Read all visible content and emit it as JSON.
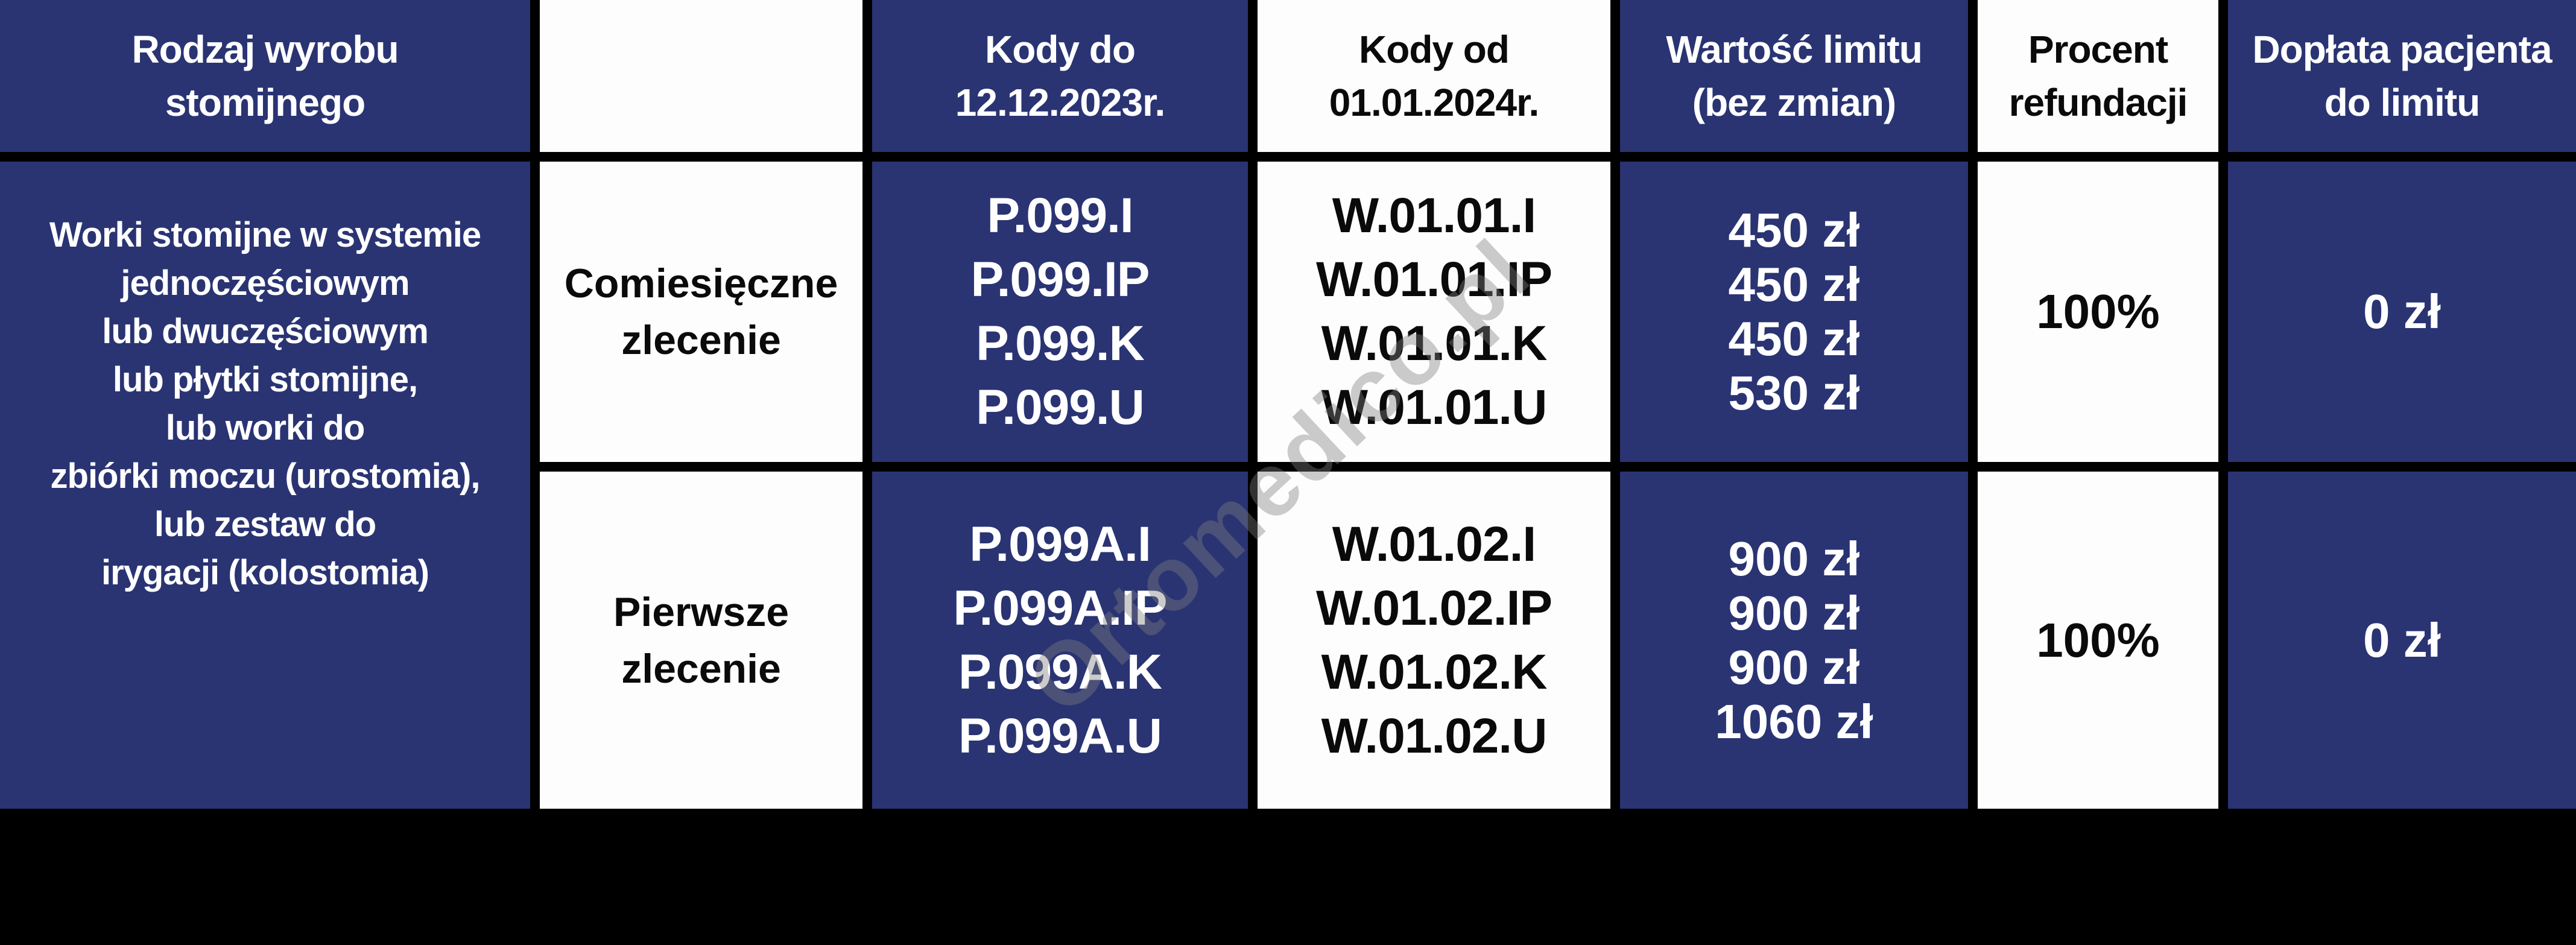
{
  "colors": {
    "navy": "#2a3473",
    "grid_black": "#000000",
    "cell_white": "#fdfdfd",
    "text_white": "#ffffff",
    "text_dark": "#0a0a0a",
    "watermark_gray": "#7d7d7d"
  },
  "watermark": {
    "text": "Ortomedico.pl"
  },
  "header": {
    "product_type": "Rodzaj wyrobu\nstomijnego",
    "order_type": "",
    "codes_until": "Kody do\n12.12.2023r.",
    "codes_from": "Kody od\n01.01.2024r.",
    "limit_value": "Wartość limitu\n(bez zmian)",
    "refund_percent": "Procent\nrefundacji",
    "patient_copay": "Dopłata pacjenta\ndo limitu"
  },
  "product": {
    "name": "Worki stomijne w systemie\njednoczęściowym\nlub dwuczęściowym\nlub płytki stomijne,\nlub worki do\nzbiórki moczu (urostomia),\nlub zestaw do\nirygacji (kolostomia)"
  },
  "rows": [
    {
      "order_type": "Comiesięczne\nzlecenie",
      "codes_until": "P.099.I\nP.099.IP\nP.099.K\nP.099.U",
      "codes_from": "W.01.01.I\nW.01.01.IP\nW.01.01.K\nW.01.01.U",
      "limit_value": "450 zł\n450 zł\n450 zł\n530 zł",
      "refund_percent": "100%",
      "patient_copay": "0 zł"
    },
    {
      "order_type": "Pierwsze\nzlecenie",
      "codes_until": "P.099A.I\nP.099A.IP\nP.099A.K\nP.099A.U",
      "codes_from": "W.01.02.I\nW.01.02.IP\nW.01.02.K\nW.01.02.U",
      "limit_value": "900 zł\n900 zł\n900 zł\n1060 zł",
      "refund_percent": "100%",
      "patient_copay": "0 zł"
    }
  ]
}
